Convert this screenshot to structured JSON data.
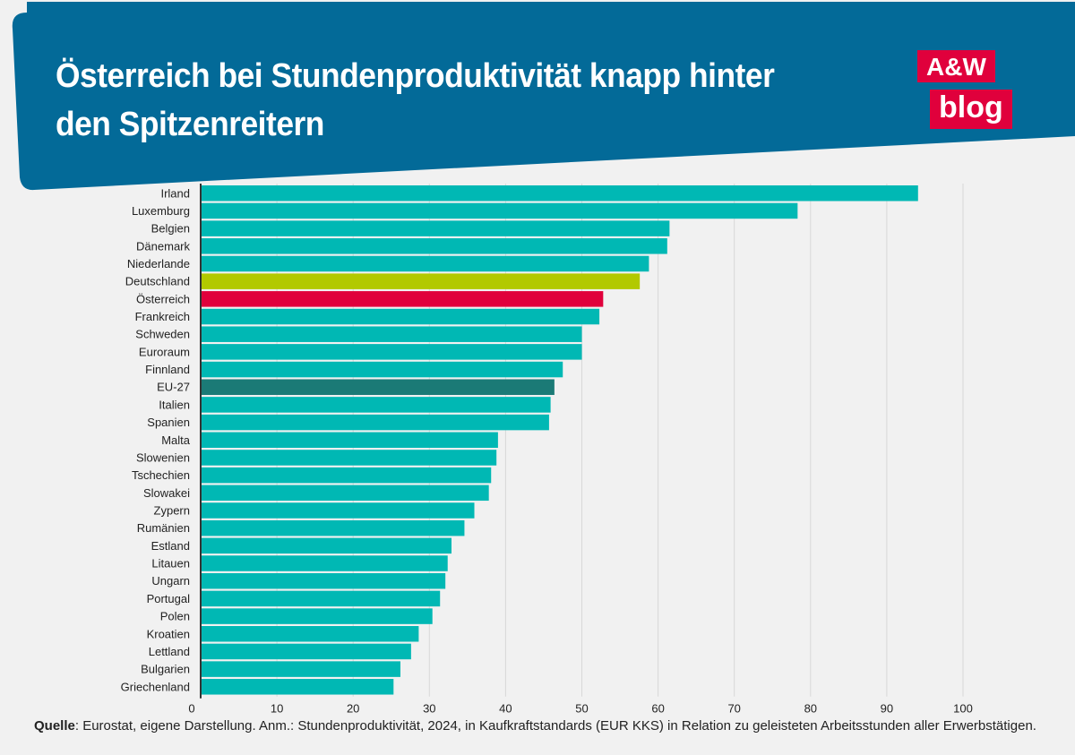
{
  "header": {
    "title_line1": "Österreich bei Stundenproduktivität knapp hinter",
    "title_line2": "den Spitzenreitern"
  },
  "logo": {
    "line1": "A&W",
    "line2": "blog"
  },
  "colors": {
    "banner": "#036a98",
    "default": "#00b8b4",
    "germany": "#b2c900",
    "austria": "#e0003c",
    "eu27": "#1b7a76",
    "grid": "#d8d8d8",
    "axis": "#333333"
  },
  "chart_data": {
    "type": "bar",
    "orientation": "horizontal",
    "title": "Österreich bei Stundenproduktivität knapp hinter den Spitzenreitern",
    "categories": [
      "Irland",
      "Luxemburg",
      "Belgien",
      "Dänemark",
      "Niederlande",
      "Deutschland",
      "Österreich",
      "Frankreich",
      "Schweden",
      "Euroraum",
      "Finnland",
      "EU-27",
      "Italien",
      "Spanien",
      "Malta",
      "Slowenien",
      "Tschechien",
      "Slowakei",
      "Zypern",
      "Rumänien",
      "Estland",
      "Litauen",
      "Ungarn",
      "Portugal",
      "Polen",
      "Kroatien",
      "Lettland",
      "Bulgarien",
      "Griechenland"
    ],
    "values": [
      94.1,
      78.3,
      61.5,
      61.2,
      58.8,
      57.6,
      52.8,
      52.3,
      50.0,
      50.0,
      47.5,
      46.4,
      45.9,
      45.7,
      39.0,
      38.8,
      38.1,
      37.8,
      35.9,
      34.6,
      32.9,
      32.4,
      32.1,
      31.4,
      30.4,
      28.6,
      27.6,
      26.2,
      25.3
    ],
    "highlights": {
      "Deutschland": "germany",
      "Österreich": "austria",
      "EU-27": "eu27"
    },
    "xlim": [
      0,
      100
    ],
    "xticks": [
      0,
      10,
      20,
      30,
      40,
      50,
      60,
      70,
      80,
      90,
      100
    ],
    "xlabel": "",
    "ylabel": ""
  },
  "footnote": {
    "label": "Quelle",
    "text": ": Eurostat, eigene Darstellung. Anm.: Stundenproduktivität, 2024, in Kaufkraftstandards (EUR KKS) in Relation zu geleisteten Arbeitsstunden aller Erwerbstätigen."
  }
}
